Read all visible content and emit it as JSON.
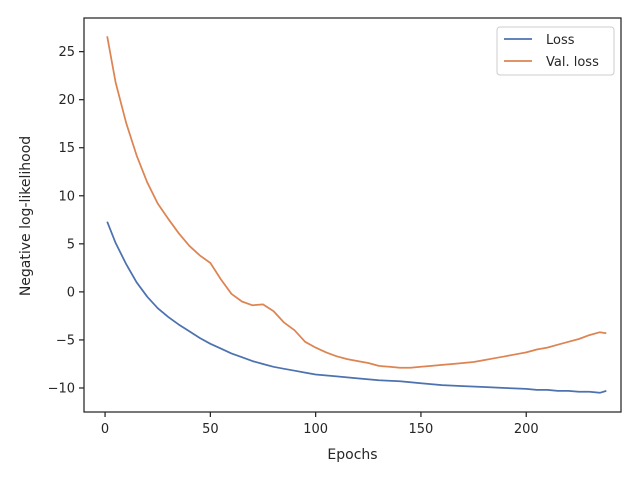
{
  "chart_data": {
    "type": "line",
    "xlabel": "Epochs",
    "ylabel": "Negative log-likelihood",
    "xlim": [
      -10,
      245
    ],
    "ylim": [
      -12.5,
      28.5
    ],
    "xticks": [
      0,
      50,
      100,
      150,
      200
    ],
    "yticks": [
      -10,
      -5,
      0,
      5,
      10,
      15,
      20,
      25
    ],
    "grid": false,
    "legend_position": "top-right",
    "series": [
      {
        "name": "Loss",
        "color": "#4c72b0",
        "x": [
          1,
          5,
          10,
          15,
          20,
          25,
          30,
          35,
          40,
          45,
          50,
          55,
          60,
          65,
          70,
          75,
          80,
          85,
          90,
          95,
          100,
          110,
          120,
          130,
          140,
          150,
          160,
          170,
          180,
          190,
          200,
          205,
          210,
          215,
          220,
          225,
          230,
          235,
          238
        ],
        "y": [
          7.3,
          5.1,
          2.9,
          1.0,
          -0.5,
          -1.7,
          -2.6,
          -3.4,
          -4.1,
          -4.8,
          -5.4,
          -5.9,
          -6.4,
          -6.8,
          -7.2,
          -7.5,
          -7.8,
          -8.0,
          -8.2,
          -8.4,
          -8.6,
          -8.8,
          -9.0,
          -9.2,
          -9.3,
          -9.5,
          -9.7,
          -9.8,
          -9.9,
          -10.0,
          -10.1,
          -10.2,
          -10.2,
          -10.3,
          -10.3,
          -10.4,
          -10.4,
          -10.5,
          -10.3
        ]
      },
      {
        "name": "Val. loss",
        "color": "#dd8452",
        "x": [
          1,
          5,
          10,
          15,
          20,
          25,
          30,
          35,
          40,
          45,
          50,
          55,
          60,
          65,
          70,
          75,
          80,
          85,
          90,
          95,
          100,
          105,
          110,
          115,
          120,
          125,
          130,
          135,
          140,
          145,
          150,
          155,
          160,
          165,
          170,
          175,
          180,
          185,
          190,
          195,
          200,
          205,
          210,
          215,
          220,
          225,
          230,
          235,
          238
        ],
        "y": [
          26.6,
          21.8,
          17.6,
          14.2,
          11.4,
          9.2,
          7.6,
          6.1,
          4.8,
          3.8,
          3.0,
          1.3,
          -0.2,
          -1.0,
          -1.4,
          -1.3,
          -2.0,
          -3.2,
          -4.0,
          -5.2,
          -5.8,
          -6.3,
          -6.7,
          -7.0,
          -7.2,
          -7.4,
          -7.7,
          -7.8,
          -7.9,
          -7.9,
          -7.8,
          -7.7,
          -7.6,
          -7.5,
          -7.4,
          -7.3,
          -7.1,
          -6.9,
          -6.7,
          -6.5,
          -6.3,
          -6.0,
          -5.8,
          -5.5,
          -5.2,
          -4.9,
          -4.5,
          -4.2,
          -4.3
        ]
      }
    ]
  }
}
